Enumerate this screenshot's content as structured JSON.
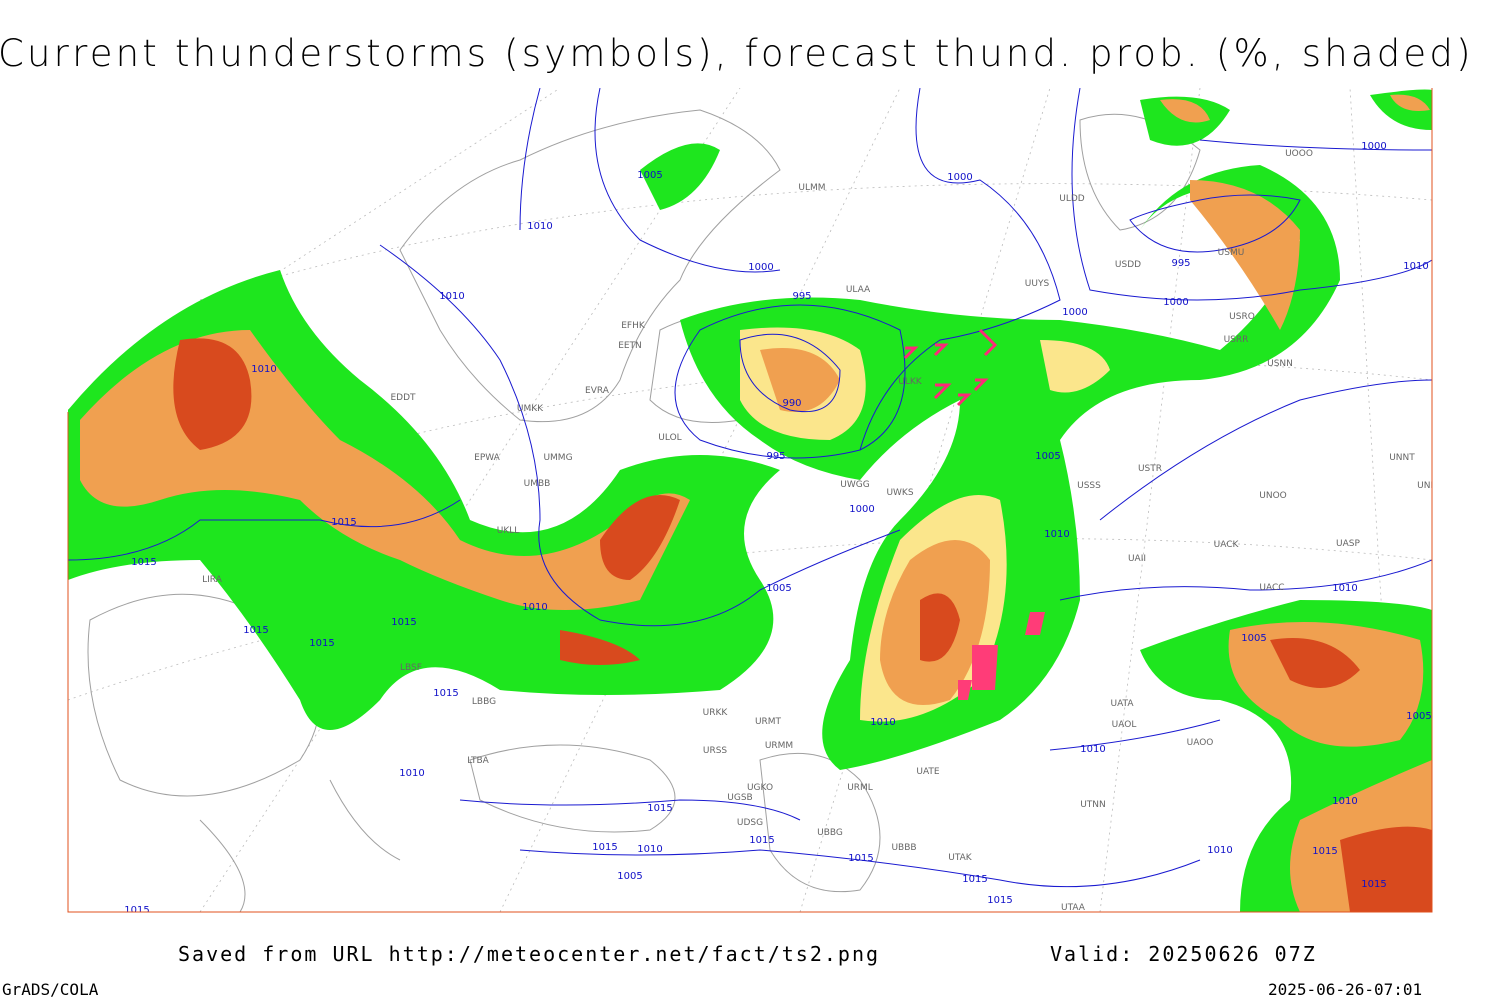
{
  "header": {
    "title": "Current thunderstorms (symbols), forecast thund. prob. (%, shaded)"
  },
  "footer": {
    "source": "Saved from URL http://meteocenter.net/fact/ts2.png",
    "valid": "Valid: 20250626 07Z",
    "software": "GrADS/COLA",
    "timestamp": "2025-06-26-07:01"
  },
  "isobar_labels": [
    "1005",
    "1010",
    "1000",
    "1010",
    "995",
    "1010",
    "990",
    "995",
    "1000",
    "1000",
    "1000",
    "995",
    "1000",
    "1010",
    "1005",
    "1000",
    "1015",
    "1015",
    "1010",
    "1005",
    "1010",
    "1015",
    "1015",
    "1015",
    "1015",
    "1010",
    "1010",
    "1010",
    "1005",
    "1005",
    "1010",
    "1015",
    "1015",
    "1010",
    "1015",
    "1015",
    "1010",
    "1005",
    "1015",
    "1015",
    "1015",
    "1015",
    "1015",
    "1010"
  ],
  "stations": [
    "UMKK",
    "EPWA",
    "UMMG",
    "UMBB",
    "EVRA",
    "EETN",
    "EFHK",
    "ULOL",
    "ULAA",
    "ULDD",
    "ULMM",
    "UUYS",
    "ULKK",
    "USSS",
    "USTR",
    "UNOO",
    "UACC",
    "UACK",
    "UASP",
    "UAII",
    "UATA",
    "UAOL",
    "UAOO",
    "UTNN",
    "UATE",
    "URML",
    "UGKO",
    "UGSB",
    "UDSG",
    "UBBG",
    "UBBB",
    "UTAK",
    "UTAA",
    "URMT",
    "URMM",
    "URSS",
    "URKK",
    "LBBG",
    "LBSF",
    "LTBA",
    "LIRA",
    "EDDT",
    "UKLL",
    "UNNT",
    "UNBB",
    "USDD",
    "USMU",
    "USRO",
    "USRR",
    "USNN",
    "UOOO",
    "UWGG",
    "UWKS"
  ]
}
